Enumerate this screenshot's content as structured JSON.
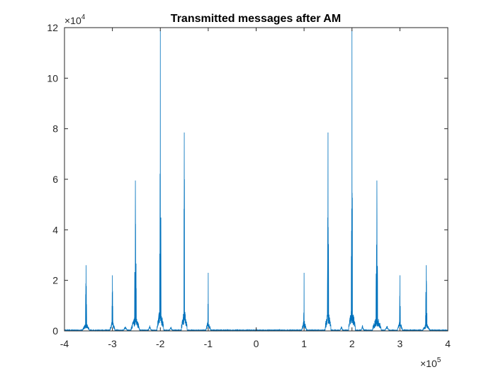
{
  "chart_data": {
    "type": "line",
    "title": "Transmitted messages after AM",
    "xlabel": "",
    "ylabel": "",
    "xlim": [
      -400000,
      400000
    ],
    "ylim": [
      0,
      120000
    ],
    "x_ticks": [
      -400000,
      -300000,
      -200000,
      -100000,
      0,
      100000,
      200000,
      300000,
      400000
    ],
    "x_tick_labels": [
      "-4",
      "-3",
      "-2",
      "-1",
      "0",
      "1",
      "2",
      "3",
      "4"
    ],
    "y_ticks": [
      0,
      20000,
      40000,
      60000,
      80000,
      100000,
      120000
    ],
    "y_tick_labels": [
      "0",
      "2",
      "4",
      "6",
      "8",
      "10",
      "12"
    ],
    "x_exponent": {
      "base": "×10",
      "power": "5"
    },
    "y_exponent": {
      "base": "×10",
      "power": "4"
    },
    "grid": false,
    "legend": "none",
    "line_color": "#0072BD",
    "series": [
      {
        "clusters": [
          {
            "center": -355000,
            "width": 7000,
            "peak": 26000,
            "bed": 3500
          },
          {
            "center": -300000,
            "width": 5000,
            "peak": 22000,
            "bed": 4500
          },
          {
            "center": -252000,
            "width": 9000,
            "peak": 59500,
            "bed": 6500
          },
          {
            "center": -200000,
            "width": 7000,
            "peak": 119000,
            "bed": 10000
          },
          {
            "center": -150000,
            "width": 6000,
            "peak": 78500,
            "bed": 9500
          },
          {
            "center": -100000,
            "width": 4500,
            "peak": 23000,
            "bed": 5000
          },
          {
            "center": 100000,
            "width": 4500,
            "peak": 23000,
            "bed": 5000
          },
          {
            "center": 150000,
            "width": 6000,
            "peak": 78500,
            "bed": 9500
          },
          {
            "center": 200000,
            "width": 7000,
            "peak": 119000,
            "bed": 10000
          },
          {
            "center": 252000,
            "width": 9000,
            "peak": 59500,
            "bed": 6500
          },
          {
            "center": 300000,
            "width": 5000,
            "peak": 22000,
            "bed": 4500
          },
          {
            "center": 355000,
            "width": 7000,
            "peak": 26000,
            "bed": 3500
          }
        ],
        "small_bumps": [
          {
            "center": -273000,
            "width": 4000,
            "peak": 1800
          },
          {
            "center": -222000,
            "width": 3000,
            "peak": 2000
          },
          {
            "center": -178000,
            "width": 3000,
            "peak": 1500
          },
          {
            "center": 178000,
            "width": 3000,
            "peak": 1500
          },
          {
            "center": 222000,
            "width": 3000,
            "peak": 2000
          },
          {
            "center": 273000,
            "width": 4000,
            "peak": 1800
          }
        ]
      }
    ]
  }
}
